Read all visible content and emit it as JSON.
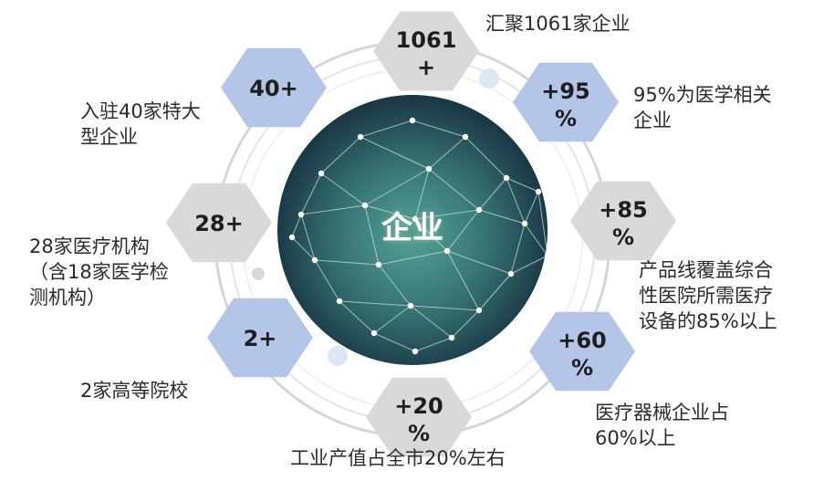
{
  "center": {
    "label": "企业"
  },
  "colors": {
    "blue_hex": "#b4c6e7",
    "grey_hex": "#d9d9d9",
    "ring": "#d0d0d0"
  },
  "nodes": [
    {
      "id": "top",
      "value_line1": "1061",
      "value_line2": "+",
      "color": "grey",
      "label": "汇聚1061家企业"
    },
    {
      "id": "upper-right",
      "value_line1": "+95",
      "value_line2": "%",
      "color": "blue",
      "label": "95%为医学相关\n企业"
    },
    {
      "id": "right",
      "value_line1": "+85",
      "value_line2": "%",
      "color": "grey",
      "label": "产品线覆盖综合\n性医院所需医疗\n设备的85%以上"
    },
    {
      "id": "lower-right",
      "value_line1": "+60",
      "value_line2": "%",
      "color": "blue",
      "label": "医疗器械企业占\n60%以上"
    },
    {
      "id": "bottom",
      "value_line1": "+20",
      "value_line2": "%",
      "color": "grey",
      "label": "工业产值占全市20%左右"
    },
    {
      "id": "lower-left",
      "value_line1": "2+",
      "value_line2": "",
      "color": "blue",
      "label": "2家高等院校"
    },
    {
      "id": "left",
      "value_line1": "28+",
      "value_line2": "",
      "color": "grey",
      "label": "28家医疗机构\n（含18家医学检\n测机构）"
    },
    {
      "id": "upper-left",
      "value_line1": "40+",
      "value_line2": "",
      "color": "blue",
      "label": "入驻40家特大\n型企业"
    }
  ]
}
